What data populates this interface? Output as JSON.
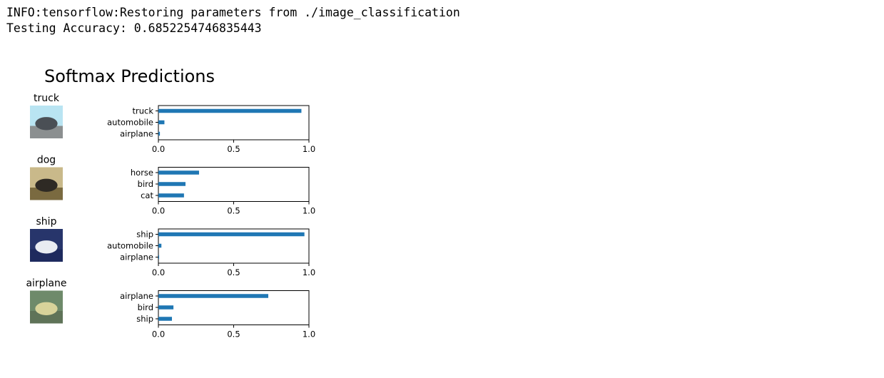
{
  "output": {
    "lines": [
      "INFO:tensorflow:Restoring parameters from ./image_classification",
      "Testing Accuracy: 0.6852254746835443"
    ]
  },
  "chart_data": {
    "type": "bar",
    "orientation": "horizontal",
    "title": "Softmax Predictions",
    "bar_color": "#1f77b4",
    "xlim": [
      0,
      1.0
    ],
    "xticks": [
      "0.0",
      "0.5",
      "1.0"
    ],
    "panels": [
      {
        "image_label": "truck",
        "image_colors": {
          "sky": "#b9e4f2",
          "body": "#4a4f55",
          "ground": "#8b8f90"
        },
        "categories": [
          "truck",
          "automobile",
          "airplane"
        ],
        "values": [
          0.95,
          0.04,
          0.01
        ]
      },
      {
        "image_label": "dog",
        "image_colors": {
          "sky": "#c9b98a",
          "body": "#2e2a24",
          "ground": "#7a6a40"
        },
        "categories": [
          "horse",
          "bird",
          "cat"
        ],
        "values": [
          0.27,
          0.18,
          0.17
        ]
      },
      {
        "image_label": "ship",
        "image_colors": {
          "sky": "#27356b",
          "body": "#e9ecf2",
          "ground": "#1e2a5e"
        },
        "categories": [
          "ship",
          "automobile",
          "airplane"
        ],
        "values": [
          0.97,
          0.02,
          0.005
        ]
      },
      {
        "image_label": "airplane",
        "image_colors": {
          "sky": "#6e8a6a",
          "body": "#d8d39a",
          "ground": "#5f7358"
        },
        "categories": [
          "airplane",
          "bird",
          "ship"
        ],
        "values": [
          0.73,
          0.1,
          0.09
        ]
      }
    ]
  }
}
